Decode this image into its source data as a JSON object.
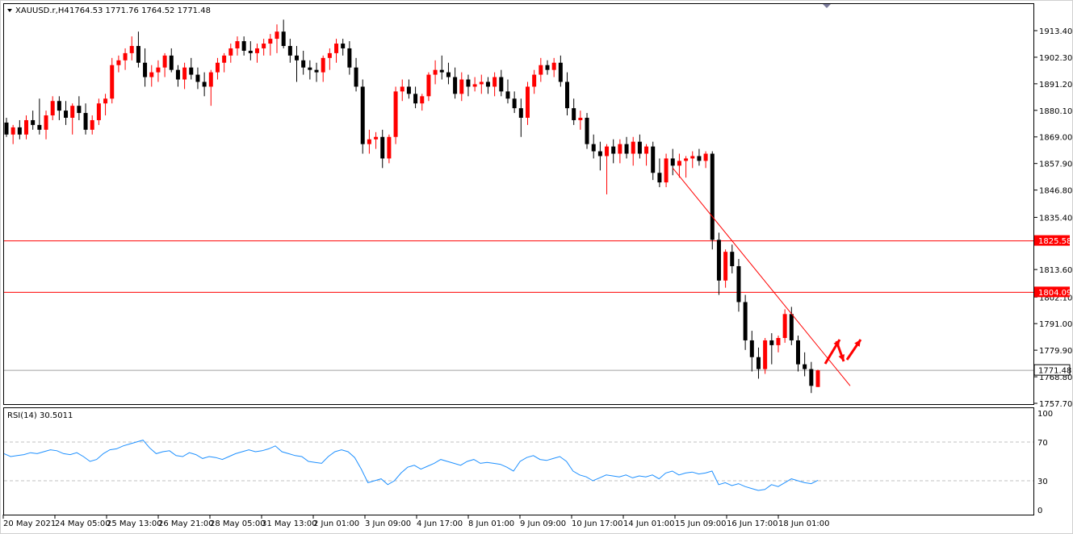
{
  "header": {
    "symbol_title": "XAUUSD.r,H4",
    "ohlc": "1764.53 1771.76 1764.52 1771.48"
  },
  "rsi_panel": {
    "title": "RSI(14) 30.5011"
  },
  "colors": {
    "bull": "#ff0000",
    "bear": "#000000",
    "level_line": "#ff0000",
    "rsi_line": "#1e90ff",
    "grid": "#c0c0c0",
    "current_price_line": "#a0a0a0"
  },
  "chart_data": [
    {
      "type": "candlestick",
      "title": "XAUUSD.r,H4",
      "y_ticks": [
        "1913.40",
        "1902.30",
        "1891.20",
        "1880.10",
        "1869.00",
        "1857.90",
        "1846.80",
        "1835.40",
        "1813.60",
        "1802.10",
        "1791.00",
        "1779.90",
        "1768.80",
        "1757.70"
      ],
      "ylim": [
        1755,
        1924
      ],
      "x_tick_labels": [
        "20 May 2021",
        "24 May 05:00",
        "25 May 13:00",
        "26 May 21:00",
        "28 May 05:00",
        "31 May 13:00",
        "2 Jun 01:00",
        "3 Jun 09:00",
        "4 Jun 17:00",
        "8 Jun 01:00",
        "9 Jun 09:00",
        "10 Jun 17:00",
        "14 Jun 01:00",
        "15 Jun 09:00",
        "16 Jun 17:00",
        "18 Jun 01:00"
      ],
      "price_levels": [
        {
          "label": "1825.58",
          "value": 1825.58
        },
        {
          "label": "1804.09",
          "value": 1804.09
        }
      ],
      "current_price": {
        "label": "1771.48",
        "value": 1771.48
      },
      "candles": [
        [
          1875,
          1877,
          1869,
          1870
        ],
        [
          1870,
          1874,
          1866,
          1873
        ],
        [
          1873,
          1876,
          1868,
          1870
        ],
        [
          1870,
          1878,
          1868,
          1876
        ],
        [
          1876,
          1880,
          1872,
          1874
        ],
        [
          1874,
          1885,
          1870,
          1872
        ],
        [
          1872,
          1880,
          1868,
          1878
        ],
        [
          1878,
          1886,
          1876,
          1884
        ],
        [
          1884,
          1886,
          1876,
          1880
        ],
        [
          1880,
          1884,
          1874,
          1877
        ],
        [
          1877,
          1883,
          1870,
          1882
        ],
        [
          1882,
          1886,
          1876,
          1879
        ],
        [
          1879,
          1883,
          1870,
          1872
        ],
        [
          1872,
          1878,
          1870,
          1876
        ],
        [
          1876,
          1885,
          1874,
          1883
        ],
        [
          1883,
          1887,
          1878,
          1885
        ],
        [
          1885,
          1902,
          1883,
          1899
        ],
        [
          1899,
          1903,
          1896,
          1901
        ],
        [
          1901,
          1906,
          1897,
          1904
        ],
        [
          1904,
          1911,
          1901,
          1907
        ],
        [
          1907,
          1913,
          1898,
          1900
        ],
        [
          1900,
          1906,
          1890,
          1894
        ],
        [
          1894,
          1899,
          1890,
          1896
        ],
        [
          1896,
          1901,
          1892,
          1898
        ],
        [
          1898,
          1904,
          1894,
          1903
        ],
        [
          1903,
          1906,
          1896,
          1897
        ],
        [
          1897,
          1899,
          1890,
          1893
        ],
        [
          1893,
          1900,
          1889,
          1898
        ],
        [
          1898,
          1902,
          1893,
          1895
        ],
        [
          1895,
          1898,
          1889,
          1892
        ],
        [
          1892,
          1896,
          1886,
          1890
        ],
        [
          1890,
          1897,
          1882,
          1896
        ],
        [
          1896,
          1902,
          1893,
          1900
        ],
        [
          1900,
          1904,
          1896,
          1903
        ],
        [
          1903,
          1908,
          1900,
          1906
        ],
        [
          1906,
          1911,
          1903,
          1909
        ],
        [
          1909,
          1911,
          1903,
          1905
        ],
        [
          1905,
          1909,
          1901,
          1904
        ],
        [
          1904,
          1908,
          1900,
          1906
        ],
        [
          1906,
          1910,
          1903,
          1908
        ],
        [
          1908,
          1912,
          1903,
          1910
        ],
        [
          1910,
          1916,
          1904,
          1913
        ],
        [
          1913,
          1918,
          1906,
          1907
        ],
        [
          1907,
          1910,
          1900,
          1903
        ],
        [
          1903,
          1907,
          1892,
          1901
        ],
        [
          1901,
          1905,
          1895,
          1898
        ],
        [
          1898,
          1901,
          1893,
          1897
        ],
        [
          1897,
          1900,
          1892,
          1896
        ],
        [
          1896,
          1903,
          1892,
          1902
        ],
        [
          1902,
          1906,
          1897,
          1904
        ],
        [
          1904,
          1910,
          1900,
          1908
        ],
        [
          1908,
          1910,
          1903,
          1906
        ],
        [
          1906,
          1909,
          1895,
          1898
        ],
        [
          1898,
          1902,
          1888,
          1890
        ],
        [
          1890,
          1893,
          1862,
          1866
        ],
        [
          1866,
          1872,
          1862,
          1868
        ],
        [
          1868,
          1871,
          1864,
          1869
        ],
        [
          1869,
          1872,
          1856,
          1860
        ],
        [
          1860,
          1870,
          1858,
          1869
        ],
        [
          1869,
          1890,
          1866,
          1888
        ],
        [
          1888,
          1893,
          1884,
          1890
        ],
        [
          1890,
          1893,
          1885,
          1887
        ],
        [
          1887,
          1890,
          1881,
          1883
        ],
        [
          1883,
          1887,
          1880,
          1886
        ],
        [
          1886,
          1896,
          1884,
          1895
        ],
        [
          1895,
          1901,
          1891,
          1897
        ],
        [
          1897,
          1903,
          1893,
          1896
        ],
        [
          1896,
          1900,
          1891,
          1894
        ],
        [
          1894,
          1898,
          1885,
          1887
        ],
        [
          1887,
          1896,
          1884,
          1893
        ],
        [
          1893,
          1895,
          1886,
          1890
        ],
        [
          1890,
          1894,
          1888,
          1891
        ],
        [
          1891,
          1895,
          1887,
          1892
        ],
        [
          1892,
          1894,
          1887,
          1890
        ],
        [
          1890,
          1896,
          1886,
          1894
        ],
        [
          1894,
          1897,
          1886,
          1888
        ],
        [
          1888,
          1893,
          1883,
          1885
        ],
        [
          1885,
          1888,
          1879,
          1881
        ],
        [
          1881,
          1885,
          1869,
          1877
        ],
        [
          1877,
          1892,
          1874,
          1890
        ],
        [
          1890,
          1897,
          1887,
          1895
        ],
        [
          1895,
          1902,
          1892,
          1899
        ],
        [
          1899,
          1901,
          1895,
          1897
        ],
        [
          1897,
          1902,
          1894,
          1900
        ],
        [
          1900,
          1903,
          1890,
          1892
        ],
        [
          1892,
          1896,
          1878,
          1881
        ],
        [
          1881,
          1885,
          1874,
          1876
        ],
        [
          1876,
          1880,
          1872,
          1877
        ],
        [
          1877,
          1879,
          1864,
          1866
        ],
        [
          1866,
          1870,
          1860,
          1863
        ],
        [
          1863,
          1867,
          1855,
          1861
        ],
        [
          1861,
          1866,
          1845,
          1865
        ],
        [
          1865,
          1868,
          1858,
          1862
        ],
        [
          1862,
          1868,
          1858,
          1866
        ],
        [
          1866,
          1869,
          1860,
          1862
        ],
        [
          1862,
          1869,
          1857,
          1867
        ],
        [
          1867,
          1870,
          1860,
          1862
        ],
        [
          1862,
          1866,
          1857,
          1865
        ],
        [
          1865,
          1867,
          1851,
          1854
        ],
        [
          1854,
          1860,
          1848,
          1850
        ],
        [
          1850,
          1862,
          1848,
          1860
        ],
        [
          1860,
          1864,
          1853,
          1857
        ],
        [
          1857,
          1862,
          1852,
          1859
        ],
        [
          1859,
          1861,
          1852,
          1860
        ],
        [
          1860,
          1863,
          1856,
          1861
        ],
        [
          1861,
          1864,
          1857,
          1859
        ],
        [
          1859,
          1863,
          1856,
          1862
        ],
        [
          1862,
          1863,
          1822,
          1826
        ],
        [
          1826,
          1829,
          1803,
          1809
        ],
        [
          1809,
          1822,
          1806,
          1821
        ],
        [
          1821,
          1824,
          1812,
          1815
        ],
        [
          1815,
          1818,
          1796,
          1800
        ],
        [
          1800,
          1803,
          1780,
          1784
        ],
        [
          1784,
          1788,
          1771,
          1777
        ],
        [
          1777,
          1781,
          1768,
          1772
        ],
        [
          1772,
          1785,
          1770,
          1784
        ],
        [
          1784,
          1787,
          1774,
          1782
        ],
        [
          1782,
          1786,
          1779,
          1785
        ],
        [
          1785,
          1797,
          1783,
          1795
        ],
        [
          1795,
          1798,
          1782,
          1784
        ],
        [
          1784,
          1786,
          1771,
          1774
        ],
        [
          1774,
          1779,
          1769,
          1772
        ],
        [
          1772,
          1775,
          1762,
          1765
        ],
        [
          1764.53,
          1771.76,
          1764.52,
          1771.48
        ]
      ]
    },
    {
      "type": "line",
      "title": "RSI(14) 30.5011",
      "y_ticks": [
        "100",
        "70",
        "30",
        "0"
      ],
      "ylim": [
        0,
        100
      ],
      "levels": [
        70,
        30
      ],
      "series": [
        {
          "values": [
            58,
            55,
            56,
            57,
            59,
            58,
            60,
            62,
            61,
            58,
            57,
            59,
            55,
            50,
            52,
            58,
            62,
            63,
            66,
            68,
            70,
            72,
            64,
            58,
            60,
            61,
            56,
            55,
            59,
            57,
            53,
            55,
            54,
            52,
            55,
            58,
            60,
            62,
            60,
            61,
            63,
            66,
            60,
            58,
            56,
            55,
            50,
            49,
            48,
            55,
            60,
            62,
            60,
            54,
            42,
            28,
            30,
            32,
            26,
            30,
            38,
            44,
            46,
            42,
            45,
            48,
            52,
            50,
            48,
            46,
            50,
            52,
            48,
            49,
            48,
            47,
            44,
            40,
            50,
            54,
            56,
            52,
            51,
            53,
            55,
            50,
            40,
            36,
            34,
            30,
            33,
            36,
            35,
            34,
            36,
            33,
            35,
            34,
            36,
            32,
            38,
            40,
            36,
            38,
            39,
            37,
            38,
            40,
            26,
            28,
            25,
            27,
            24,
            22,
            20,
            21,
            26,
            24,
            28,
            32,
            30,
            28,
            27,
            30.5
          ]
        }
      ]
    }
  ],
  "drawn_objects": {
    "trendline": "red diagonal from 15 Jun high to 18 Jun",
    "arrows": "red projection arrows up-down-up"
  }
}
